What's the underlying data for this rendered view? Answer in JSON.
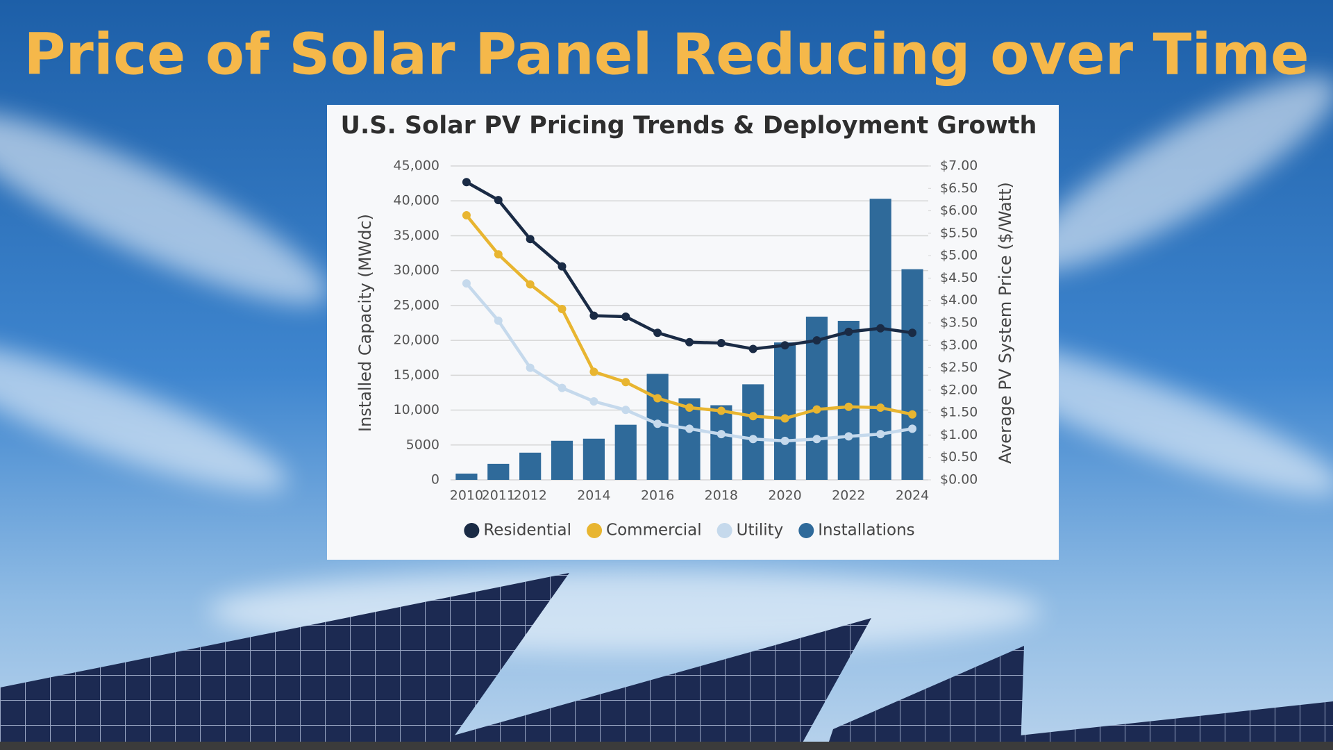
{
  "page_title": "Price of Solar Panel Reducing over Time",
  "chart_data": {
    "type": "bar",
    "title": "U.S. Solar PV Pricing Trends & Deployment Growth",
    "y_label": "Installed Capacity (MWdc)",
    "y2_label": "Average PV System Price ($/Watt)",
    "categories": [
      "2010",
      "2011",
      "2012",
      null,
      "2014",
      null,
      "2016",
      null,
      "2018",
      null,
      "2020",
      null,
      "2022",
      null,
      "2024"
    ],
    "series": [
      {
        "name": "Residential",
        "type": "line",
        "axis": "y2",
        "color": "#1a2b45",
        "values": [
          6.64,
          6.24,
          5.37,
          4.76,
          3.66,
          3.64,
          3.28,
          3.07,
          3.05,
          2.92,
          3.0,
          3.11,
          3.3,
          3.38,
          3.28
        ]
      },
      {
        "name": "Commercial",
        "type": "line",
        "axis": "y2",
        "color": "#e8b530",
        "values": [
          5.9,
          5.03,
          4.36,
          3.81,
          2.41,
          2.18,
          1.82,
          1.61,
          1.54,
          1.42,
          1.37,
          1.57,
          1.63,
          1.61,
          1.46
        ]
      },
      {
        "name": "Utility",
        "type": "line",
        "axis": "y2",
        "color": "#c5d9ec",
        "values": [
          4.38,
          3.55,
          2.5,
          2.05,
          1.75,
          1.56,
          1.25,
          1.14,
          1.02,
          0.91,
          0.87,
          0.91,
          0.97,
          1.02,
          1.14
        ]
      },
      {
        "name": "Installations",
        "type": "bar",
        "color": "#2f6a9a",
        "values": [
          900,
          2300,
          3900,
          5600,
          5900,
          7900,
          15200,
          11700,
          10700,
          13700,
          19700,
          23400,
          22800,
          40300,
          30200
        ]
      }
    ],
    "ylim": [
      0,
      45000
    ],
    "yticks": [
      0,
      5000,
      {
        "value": 10000,
        "label": "10,000"
      },
      {
        "value": 15000,
        "label": "15,000"
      },
      {
        "value": 20000,
        "label": "20,000"
      },
      {
        "value": 25000,
        "label": "25,000"
      },
      {
        "value": 30000,
        "label": "30,000"
      },
      {
        "value": 35000,
        "label": "35,000"
      },
      {
        "value": 40000,
        "label": "40,000"
      },
      {
        "value": 45000,
        "label": "45,000"
      }
    ],
    "y2lim": [
      0,
      7
    ],
    "y2ticks": [
      {
        "value": 0,
        "label": "$0.00"
      },
      {
        "value": 0.5,
        "label": "$0.50"
      },
      {
        "value": 1,
        "label": "$1.00"
      },
      {
        "value": 1.5,
        "label": "$1.50"
      },
      {
        "value": 2,
        "label": "$2.00"
      },
      {
        "value": 2.5,
        "label": "$2.50"
      },
      {
        "value": 3,
        "label": "$3.00"
      },
      {
        "value": 3.5,
        "label": "$3.50"
      },
      {
        "value": 4,
        "label": "$4.00"
      },
      {
        "value": 4.5,
        "label": "$4.50"
      },
      {
        "value": 5,
        "label": "$5.00"
      },
      {
        "value": 5.5,
        "label": "$5.50"
      },
      {
        "value": 6,
        "label": "$6.00"
      },
      {
        "value": 6.5,
        "label": "$6.50"
      },
      {
        "value": 7,
        "label": "$7.00"
      }
    ],
    "grid": true,
    "legend": "bottom"
  }
}
